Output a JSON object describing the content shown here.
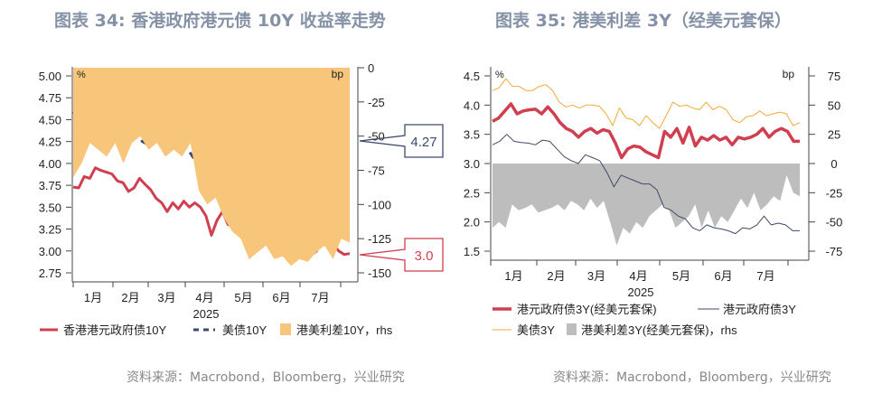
{
  "colors": {
    "orange": "#F8C67A",
    "red": "#CF3F4F",
    "navy": "#3E4A6B",
    "gray": "#BDBDBD",
    "orange_line": "#F2A93B"
  },
  "chart_data": [
    {
      "type": "line",
      "title": "图表 34: 香港政府港元债 10Y 收益率走势",
      "source": "资料来源：Macrobond，Bloomberg，兴业研究",
      "ylabel_left": "%",
      "ylabel_right": "bp",
      "xlabel": "2025",
      "months": [
        "1月",
        "2月",
        "3月",
        "4月",
        "5月",
        "6月",
        "7月"
      ],
      "yticks_left": [
        "5.00",
        "4.75",
        "4.50",
        "4.25",
        "4.00",
        "3.75",
        "3.50",
        "3.25",
        "3.00",
        "2.75"
      ],
      "ylim_left": [
        2.75,
        5.0
      ],
      "yticks_right": [
        "0",
        "-25",
        "-50",
        "-75",
        "-100",
        "-125",
        "-150"
      ],
      "ylim_right": [
        -150,
        0
      ],
      "callouts": [
        {
          "value": "4.27",
          "series": "美债10Y"
        },
        {
          "value": "3.0",
          "series": "香港港元政府债10Y"
        }
      ],
      "series": [
        {
          "name": "香港港元政府债10Y",
          "axis": "left",
          "style": "line",
          "values": [
            3.73,
            3.72,
            3.85,
            3.83,
            3.95,
            3.92,
            3.9,
            3.88,
            3.8,
            3.78,
            3.68,
            3.72,
            3.83,
            3.76,
            3.7,
            3.6,
            3.55,
            3.45,
            3.55,
            3.48,
            3.57,
            3.5,
            3.55,
            3.5,
            3.4,
            3.18,
            3.35,
            3.45,
            3.3,
            3.3,
            3.25,
            3.15,
            3.15,
            3.05,
            3.08,
            3.12,
            3.25,
            3.05,
            3.0,
            3.1,
            3.0,
            2.98,
            2.92,
            2.95,
            3.0,
            3.1,
            3.05,
            3.08,
            3.0,
            2.96,
            2.97
          ]
        },
        {
          "name": "美债10Y",
          "axis": "left",
          "style": "dash",
          "values": [
            4.57,
            4.62,
            4.72,
            4.6,
            4.55,
            4.48,
            4.58,
            4.5,
            4.25,
            4.2,
            4.3,
            4.28,
            4.32,
            4.2,
            4.05,
            4.38,
            4.3,
            4.33,
            4.17,
            4.3,
            4.45,
            4.53,
            4.42,
            4.43,
            4.4,
            4.3,
            4.22,
            4.3,
            4.42,
            4.35,
            4.4,
            4.3,
            4.27
          ]
        },
        {
          "name": "港美利差10Y，rhs",
          "axis": "right",
          "style": "area",
          "values": [
            -80,
            -70,
            -55,
            -60,
            -65,
            -55,
            -70,
            -55,
            -50,
            -60,
            -55,
            -65,
            -60,
            -65,
            -55,
            -90,
            -100,
            -95,
            -110,
            -120,
            -125,
            -140,
            -135,
            -130,
            -140,
            -138,
            -145,
            -140,
            -142,
            -135,
            -130,
            -140,
            -125,
            -128
          ]
        }
      ]
    },
    {
      "type": "line",
      "title": "图表 35: 港美利差 3Y（经美元套保）",
      "source": "资料来源：Macrobond，Bloomberg，兴业研究",
      "ylabel_left": "%",
      "ylabel_right": "bp",
      "xlabel": "2025",
      "months": [
        "1月",
        "2月",
        "3月",
        "4月",
        "5月",
        "6月",
        "7月"
      ],
      "yticks_left": [
        "4.5",
        "4.0",
        "3.5",
        "3.0",
        "2.5",
        "2.0",
        "1.5"
      ],
      "ylim_left": [
        1.5,
        4.5
      ],
      "yticks_right": [
        "75",
        "50",
        "25",
        "0",
        "-25",
        "-50",
        "-75"
      ],
      "ylim_right": [
        -75,
        75
      ],
      "series": [
        {
          "name": "港美利差3Y(经美元套保)，rhs",
          "axis": "right",
          "style": "area",
          "values": [
            -55,
            -50,
            -55,
            -35,
            -40,
            -38,
            -35,
            -42,
            -40,
            -38,
            -35,
            -40,
            -32,
            -35,
            -40,
            -30,
            -38,
            -32,
            -50,
            -70,
            -55,
            -60,
            -50,
            -55,
            -45,
            -40,
            -35,
            -40,
            -55,
            -50,
            -45,
            -35,
            -55,
            -40,
            -55,
            -45,
            -50,
            -40,
            -30,
            -38,
            -25,
            -40,
            -35,
            -28,
            -32,
            -10,
            -25,
            -28
          ]
        },
        {
          "name": "美债3Y",
          "axis": "left",
          "style": "thin-orange",
          "values": [
            4.25,
            4.3,
            4.45,
            4.32,
            4.32,
            4.25,
            4.25,
            4.32,
            4.35,
            4.25,
            4.05,
            3.97,
            4.0,
            3.95,
            4.0,
            4.0,
            3.98,
            3.85,
            3.65,
            3.95,
            3.78,
            3.75,
            3.65,
            3.82,
            3.7,
            3.6,
            3.82,
            4.05,
            3.98,
            4.0,
            3.95,
            3.92,
            4.05,
            3.92,
            3.98,
            3.92,
            3.75,
            3.7,
            3.8,
            3.82,
            3.9,
            3.82,
            3.85,
            3.88,
            3.85,
            3.65,
            3.7
          ]
        },
        {
          "name": "港元政府债3Y",
          "axis": "left",
          "style": "thin-navy",
          "values": [
            3.32,
            3.38,
            3.5,
            3.38,
            3.36,
            3.35,
            3.32,
            3.4,
            3.38,
            3.25,
            3.12,
            3.05,
            3.0,
            3.15,
            3.1,
            3.05,
            2.85,
            2.6,
            2.8,
            2.75,
            2.7,
            2.65,
            2.65,
            2.55,
            2.25,
            2.2,
            2.1,
            2.05,
            1.9,
            1.85,
            1.95,
            1.9,
            1.88,
            1.85,
            1.8,
            1.9,
            1.88,
            1.95,
            2.1,
            1.95,
            1.98,
            1.95,
            1.85,
            1.85
          ]
        },
        {
          "name": "港元政府债3Y(经美元套保)",
          "axis": "left",
          "style": "thick-red",
          "values": [
            3.72,
            3.78,
            3.9,
            4.02,
            3.85,
            3.9,
            3.92,
            3.93,
            3.85,
            3.97,
            3.85,
            3.7,
            3.6,
            3.55,
            3.45,
            3.55,
            3.6,
            3.52,
            3.58,
            3.55,
            3.35,
            3.1,
            3.25,
            3.3,
            3.28,
            3.2,
            3.15,
            3.1,
            3.55,
            3.45,
            3.6,
            3.35,
            3.62,
            3.3,
            3.45,
            3.4,
            3.48,
            3.4,
            3.45,
            3.32,
            3.45,
            3.42,
            3.45,
            3.5,
            3.6,
            3.45,
            3.55,
            3.6,
            3.55,
            3.38,
            3.38
          ]
        }
      ]
    }
  ]
}
